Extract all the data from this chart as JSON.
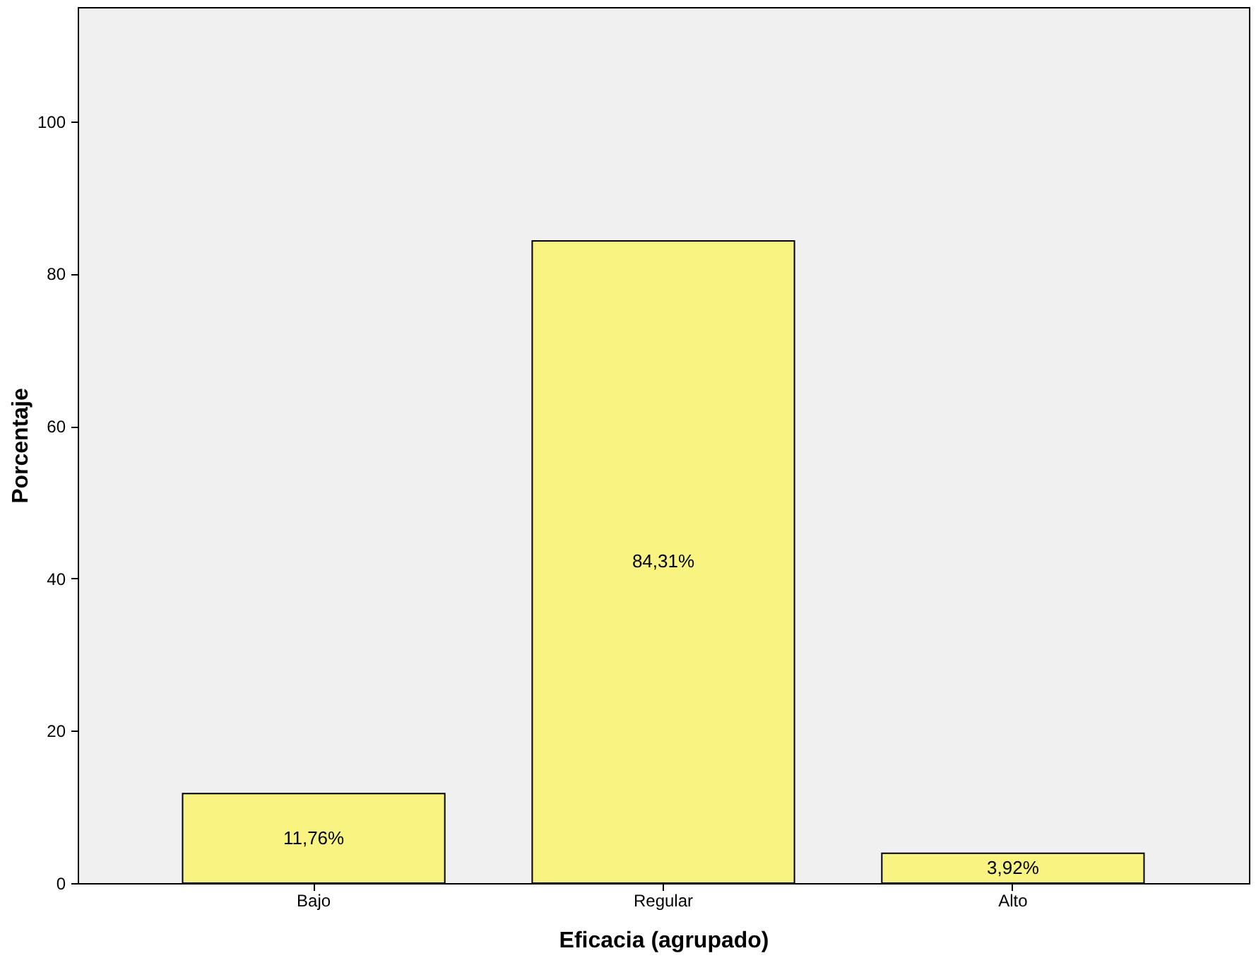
{
  "chart_data": {
    "type": "bar",
    "xlabel": "Eficacia (agrupado)",
    "ylabel": "Porcentaje",
    "categories": [
      "Bajo",
      "Regular",
      "Alto"
    ],
    "values": [
      11.76,
      84.31,
      3.92
    ],
    "value_labels": [
      "11,76%",
      "84,31%",
      "3,92%"
    ],
    "color": "#f9f382",
    "ylim": [
      0,
      115
    ],
    "yticks": [
      0,
      20,
      40,
      60,
      80,
      100
    ],
    "grid": false
  }
}
